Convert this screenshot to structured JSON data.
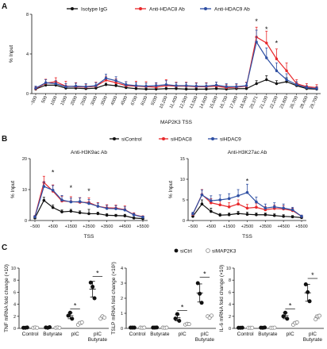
{
  "colors": {
    "black": "#111111",
    "red": "#e8282b",
    "blue": "#2e4fa3",
    "grey": "#888888"
  },
  "chart_data": [
    {
      "panel": "A",
      "type": "line",
      "legend_entries": [
        "Isotype IgG",
        "Anti-HDAC8 Ab",
        "Anti-HDAC9 Ab"
      ],
      "xlabel": "MAP2K3 TSS",
      "ylabel": "% Input",
      "ylim": [
        0,
        8
      ],
      "yticks": [
        0,
        4,
        8
      ],
      "x_tick_labels": [
        "−500",
        "500",
        "1000",
        "1500",
        "2000",
        "2500",
        "3000",
        "3500",
        "4000",
        "4500",
        "6700",
        "8100",
        "9200",
        "10,200",
        "11,400",
        "12,500",
        "13,500",
        "14,600",
        "15,600",
        "16,700",
        "17,800",
        "18,900",
        "20,371",
        "21,100",
        "22,200",
        "23,800",
        "26,700",
        "28,400",
        "29,700"
      ],
      "series": [
        {
          "name": "Isotype IgG",
          "color": "#111111",
          "values": [
            0.45,
            0.85,
            0.85,
            0.55,
            0.55,
            0.5,
            0.55,
            0.9,
            0.8,
            0.6,
            0.5,
            0.45,
            0.45,
            0.5,
            0.5,
            0.45,
            0.45,
            0.45,
            0.5,
            0.45,
            0.5,
            0.5,
            1.0,
            1.4,
            1.0,
            1.2,
            0.8,
            0.5,
            0.45
          ],
          "errors": [
            0.1,
            0.2,
            0.2,
            0.15,
            0.1,
            0.1,
            0.1,
            0.15,
            0.15,
            0.1,
            0.1,
            0.1,
            0.1,
            0.1,
            0.1,
            0.1,
            0.1,
            0.1,
            0.1,
            0.1,
            0.1,
            0.1,
            0.3,
            0.4,
            0.3,
            0.4,
            0.2,
            0.1,
            0.1
          ]
        },
        {
          "name": "Anti-HDAC8 Ab",
          "color": "#e8282b",
          "values": [
            0.5,
            1.05,
            1.2,
            0.75,
            0.7,
            0.65,
            0.75,
            1.35,
            1.1,
            0.8,
            0.75,
            0.7,
            0.65,
            0.8,
            0.75,
            0.75,
            0.7,
            0.7,
            0.75,
            0.6,
            0.65,
            0.75,
            5.7,
            5.1,
            3.5,
            2.3,
            1.0,
            0.7,
            0.6
          ],
          "errors": [
            0.2,
            0.4,
            0.4,
            0.5,
            0.4,
            0.3,
            0.4,
            0.4,
            0.4,
            0.4,
            0.5,
            0.5,
            0.4,
            0.6,
            0.4,
            0.4,
            0.4,
            0.4,
            0.4,
            0.3,
            0.3,
            0.4,
            1.0,
            1.2,
            1.0,
            0.8,
            0.4,
            0.3,
            0.3
          ]
        },
        {
          "name": "Anti-HDAC9 Ab",
          "color": "#2e4fa3",
          "values": [
            0.55,
            1.1,
            1.0,
            0.7,
            0.75,
            0.7,
            0.8,
            1.55,
            1.3,
            0.9,
            0.8,
            0.75,
            0.8,
            0.9,
            0.8,
            0.8,
            0.75,
            0.75,
            0.85,
            0.7,
            0.7,
            0.8,
            5.2,
            3.6,
            2.3,
            1.4,
            0.9,
            0.6,
            0.5
          ],
          "errors": [
            0.2,
            0.3,
            0.3,
            0.3,
            0.3,
            0.3,
            0.3,
            0.4,
            0.4,
            0.3,
            0.3,
            0.3,
            0.3,
            0.4,
            0.3,
            0.3,
            0.3,
            0.3,
            0.3,
            0.3,
            0.3,
            0.3,
            1.2,
            1.0,
            0.8,
            0.6,
            0.3,
            0.2,
            0.2
          ]
        }
      ],
      "annotations": [
        {
          "text": "*",
          "x_index": 22,
          "y": 7.3
        },
        {
          "text": "*",
          "x_index": 23,
          "y": 6.5
        },
        {
          "text": "*",
          "x_index": 24,
          "y": 5.1
        }
      ]
    },
    {
      "panel": "B",
      "type": "line",
      "legend_entries": [
        "siControl",
        "siHDAC8",
        "siHDAC9"
      ],
      "title": "Anti-H3K9ac Ab",
      "xlabel": "TSS",
      "ylabel": "% Input",
      "ylim": [
        0,
        20
      ],
      "yticks": [
        0,
        10,
        20
      ],
      "x_tick_labels": [
        "−500",
        "+500",
        "+1500",
        "+2500",
        "+3500",
        "+4500",
        "+5500"
      ],
      "x": [
        0,
        0.5,
        1,
        1.5,
        2,
        2.5,
        3,
        3.5,
        4,
        4.5,
        5,
        5.5,
        6
      ],
      "series": [
        {
          "name": "siControl",
          "color": "#111111",
          "values": [
            0.8,
            6.5,
            4.2,
            2.8,
            3.0,
            2.5,
            2.2,
            2.2,
            1.7,
            1.6,
            1.5,
            0.8,
            0.6
          ],
          "errors": [
            0.3,
            1.0,
            0.8,
            0.6,
            0.6,
            0.6,
            1.4,
            0.5,
            0.5,
            0.4,
            0.5,
            0.3,
            0.2
          ]
        },
        {
          "name": "siHDAC8",
          "color": "#e8282b",
          "values": [
            1.3,
            12.3,
            9.5,
            6.3,
            6.1,
            5.9,
            5.8,
            4.6,
            4.1,
            4.0,
            3.5,
            1.9,
            1.2
          ],
          "errors": [
            0.3,
            2.0,
            2.0,
            1.5,
            1.6,
            1.5,
            1.5,
            1.2,
            1.0,
            1.0,
            1.2,
            0.6,
            0.3
          ]
        },
        {
          "name": "siHDAC9",
          "color": "#2e4fa3",
          "values": [
            1.2,
            11.0,
            9.8,
            6.6,
            6.0,
            6.1,
            5.5,
            4.6,
            3.9,
            3.8,
            3.4,
            1.8,
            1.1
          ],
          "errors": [
            0.3,
            1.5,
            1.5,
            1.5,
            1.2,
            1.2,
            1.3,
            1.0,
            1.0,
            1.0,
            1.0,
            0.5,
            0.3
          ]
        }
      ],
      "annotations": [
        {
          "text": "*",
          "x": 1,
          "y": 15.5
        },
        {
          "text": "*",
          "x": 2,
          "y": 10.5
        },
        {
          "text": "*",
          "x": 3,
          "y": 9.5
        }
      ]
    },
    {
      "panel": "B",
      "type": "line",
      "title": "Anti-H3K27ac Ab",
      "xlabel": "TSS",
      "ylabel": "% Input",
      "ylim": [
        0,
        15
      ],
      "yticks": [
        0,
        5,
        10,
        15
      ],
      "x_tick_labels": [
        "−500",
        "+500",
        "+1500",
        "+2500",
        "+3500",
        "+4500",
        "+5500"
      ],
      "x": [
        0,
        0.5,
        1,
        1.5,
        2,
        2.5,
        3,
        3.5,
        4,
        4.5,
        5,
        5.5,
        6
      ],
      "series": [
        {
          "name": "siControl",
          "color": "#111111",
          "values": [
            1.0,
            4.0,
            2.2,
            1.3,
            1.4,
            1.7,
            1.5,
            1.4,
            1.4,
            1.2,
            1.0,
            0.9,
            0.7
          ],
          "errors": [
            0.3,
            1.0,
            0.8,
            0.4,
            0.4,
            0.5,
            0.5,
            0.4,
            0.4,
            0.4,
            0.4,
            0.3,
            0.2
          ]
        },
        {
          "name": "siHDAC8",
          "color": "#e8282b",
          "values": [
            1.5,
            6.3,
            4.3,
            3.8,
            3.3,
            4.0,
            3.0,
            3.2,
            2.6,
            2.9,
            2.8,
            2.4,
            1.0
          ],
          "errors": [
            0.4,
            1.2,
            1.0,
            1.0,
            1.0,
            1.0,
            0.9,
            1.0,
            0.8,
            0.8,
            0.8,
            0.6,
            0.3
          ]
        },
        {
          "name": "siHDAC9",
          "color": "#2e4fa3",
          "values": [
            1.6,
            6.2,
            4.8,
            5.0,
            5.3,
            6.0,
            6.8,
            4.5,
            3.0,
            3.3,
            3.0,
            2.6,
            1.0
          ],
          "errors": [
            0.4,
            1.2,
            1.2,
            1.2,
            1.2,
            1.5,
            2.0,
            1.2,
            1.0,
            1.0,
            1.0,
            0.6,
            0.3
          ]
        }
      ],
      "annotations": [
        {
          "text": "*",
          "x": 3,
          "y": 9.5
        }
      ]
    },
    {
      "panel": "C",
      "type": "scatter",
      "legend_entries": [
        "siCtrl",
        "siMAP2K3"
      ],
      "ylabel": "TNF mRNA fold change (×10)",
      "ylim": [
        0,
        10
      ],
      "yticks": [
        0,
        2,
        4,
        6,
        8,
        10
      ],
      "categories": [
        "Control",
        "Butyrate",
        "pIC",
        "pIC\nButyrate"
      ],
      "series": [
        {
          "name": "siCtrl",
          "values": [
            [
              0.1,
              0.1,
              0.15
            ],
            [
              0.15,
              0.1,
              0.2
            ],
            [
              2.1,
              2.6,
              1.6
            ],
            [
              7.6,
              6.9,
              5.0
            ]
          ],
          "means": [
            0.12,
            0.15,
            2.1,
            6.5
          ],
          "sd": [
            0.03,
            0.05,
            0.5,
            1.3
          ]
        },
        {
          "name": "siMAP2K3",
          "values": [
            [
              0.1,
              0.15,
              0.1
            ],
            [
              0.1,
              0.15,
              0.1
            ],
            [
              0.6,
              0.9,
              1.0
            ],
            [
              1.6,
              2.0,
              1.8
            ]
          ],
          "means": [
            0.12,
            0.12,
            0.85,
            1.8
          ],
          "sd": [
            0.03,
            0.03,
            0.2,
            0.2
          ]
        }
      ],
      "annotations": [
        {
          "text": "*",
          "category": "pIC"
        },
        {
          "text": "*",
          "category": "pIC\nButyrate"
        }
      ]
    },
    {
      "panel": "C",
      "type": "scatter",
      "ylabel": "TSLP mRNA fold change (×10²)",
      "ylim": [
        0,
        4
      ],
      "yticks": [
        0,
        1,
        2,
        3,
        4
      ],
      "categories": [
        "Control",
        "Butyrate",
        "pIC",
        "pIC\nButyrate"
      ],
      "series": [
        {
          "name": "siCtrl",
          "values": [
            [
              0.05,
              0.05,
              0.05
            ],
            [
              0.05,
              0.05,
              0.06
            ],
            [
              0.65,
              0.95,
              0.5
            ],
            [
              3.0,
              2.3,
              1.7
            ]
          ],
          "means": [
            0.05,
            0.05,
            0.7,
            2.35
          ],
          "sd": [
            0.01,
            0.01,
            0.2,
            0.6
          ]
        },
        {
          "name": "siMAP2K3",
          "values": [
            [
              0.05,
              0.04,
              0.05
            ],
            [
              0.05,
              0.04,
              0.05
            ],
            [
              0.25,
              0.3,
              0.28
            ],
            [
              0.8,
              0.7,
              0.85
            ]
          ],
          "means": [
            0.05,
            0.05,
            0.28,
            0.78
          ],
          "sd": [
            0.01,
            0.01,
            0.03,
            0.07
          ]
        }
      ],
      "annotations": [
        {
          "text": "*",
          "category": "pIC"
        },
        {
          "text": "*",
          "category": "pIC\nButyrate"
        }
      ]
    },
    {
      "panel": "C",
      "type": "scatter",
      "ylabel": "IL-6 mRNA fold change (×10)",
      "ylim": [
        0,
        10
      ],
      "yticks": [
        0,
        2,
        4,
        6,
        8,
        10
      ],
      "categories": [
        "Control",
        "Butyrate",
        "pIC",
        "pIC\nButyrate"
      ],
      "series": [
        {
          "name": "siCtrl",
          "values": [
            [
              0.1,
              0.1,
              0.12
            ],
            [
              0.12,
              0.1,
              0.15
            ],
            [
              2.0,
              2.6,
              1.6
            ],
            [
              7.3,
              6.0,
              4.5
            ]
          ],
          "means": [
            0.1,
            0.12,
            2.1,
            5.9
          ],
          "sd": [
            0.02,
            0.03,
            0.5,
            1.4
          ]
        },
        {
          "name": "siMAP2K3",
          "values": [
            [
              0.1,
              0.1,
              0.1
            ],
            [
              0.1,
              0.1,
              0.12
            ],
            [
              0.6,
              0.9,
              1.0
            ],
            [
              1.5,
              2.0,
              2.1
            ]
          ],
          "means": [
            0.1,
            0.1,
            0.85,
            1.9
          ],
          "sd": [
            0.02,
            0.02,
            0.2,
            0.3
          ]
        }
      ],
      "annotations": [
        {
          "text": "*",
          "category": "pIC"
        },
        {
          "text": "*",
          "category": "pIC\nButyrate"
        }
      ]
    }
  ],
  "panel_labels": [
    "A",
    "B",
    "C"
  ]
}
